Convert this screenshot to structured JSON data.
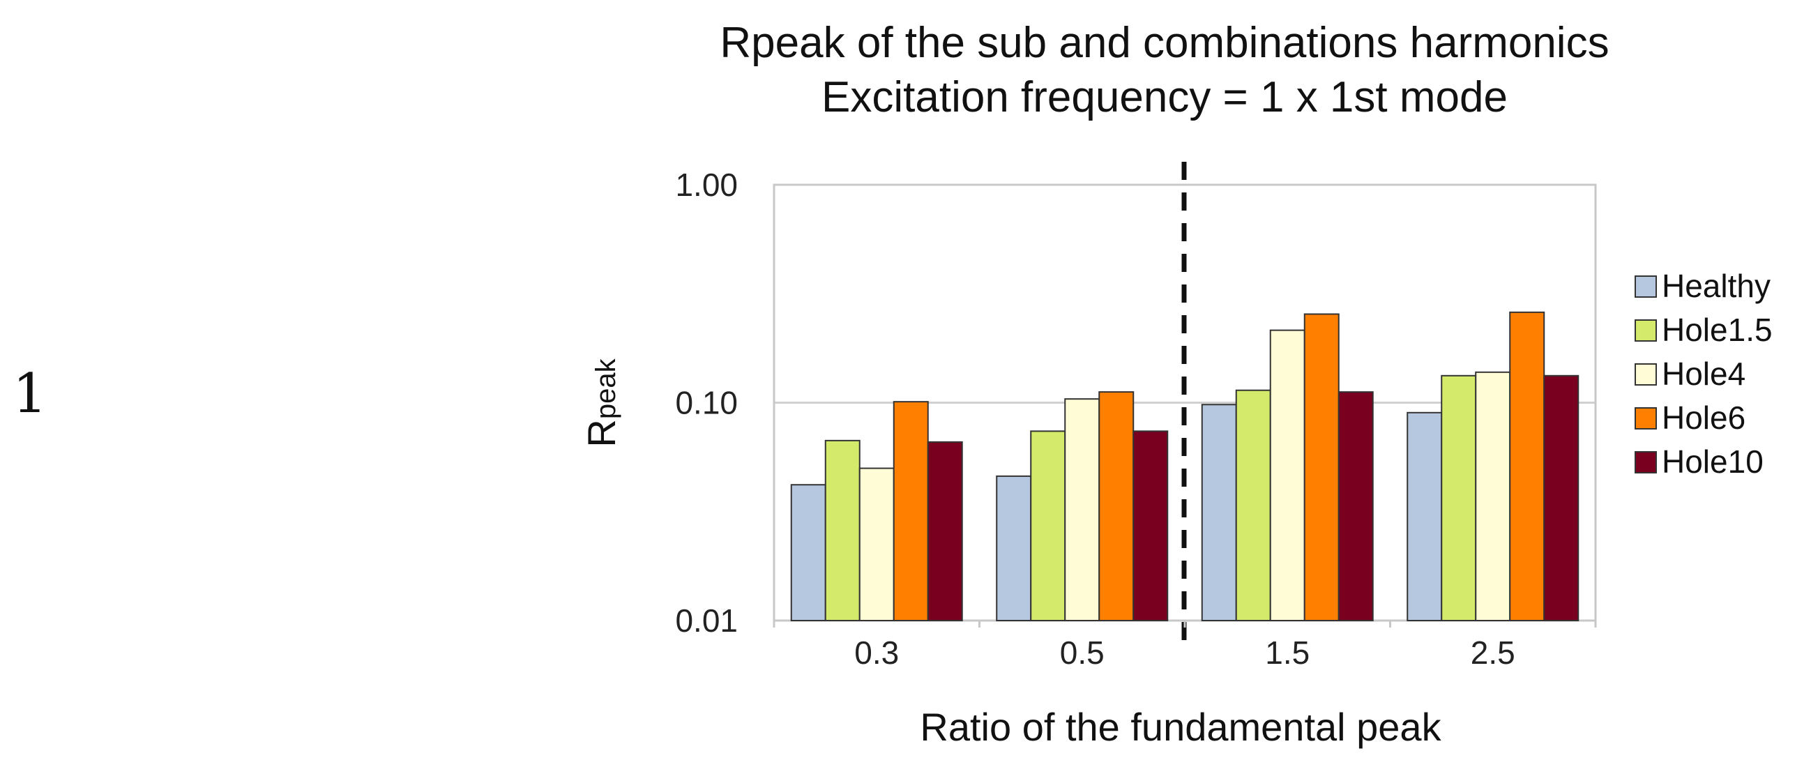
{
  "page_number": "1",
  "chart_data": {
    "type": "bar",
    "title_line1": "Rpeak of the sub and combinations harmonics",
    "title_line2": "Excitation frequency = 1 x 1st mode",
    "xlabel": "Ratio of the fundamental peak",
    "ylabel_main": "R",
    "ylabel_sub": "peak",
    "yscale": "log",
    "ylim": [
      0.01,
      1.0
    ],
    "yticks": [
      0.01,
      0.1,
      1.0
    ],
    "ytick_labels": [
      "0.01",
      "0.10",
      "1.00"
    ],
    "categories": [
      "0.3",
      "0.5",
      "1.5",
      "2.5"
    ],
    "divider_after_category": 1,
    "legend_position": "right",
    "series": [
      {
        "name": "Healthy",
        "color": "#b6c8e0",
        "values": [
          0.042,
          0.046,
          0.098,
          0.09
        ]
      },
      {
        "name": "Hole1.5",
        "color": "#d4ea6b",
        "values": [
          0.067,
          0.074,
          0.114,
          0.133
        ]
      },
      {
        "name": "Hole4",
        "color": "#fffcd6",
        "values": [
          0.05,
          0.104,
          0.215,
          0.138
        ]
      },
      {
        "name": "Hole6",
        "color": "#ff7f00",
        "values": [
          0.101,
          0.112,
          0.255,
          0.26
        ]
      },
      {
        "name": "Hole10",
        "color": "#7a0020",
        "values": [
          0.066,
          0.074,
          0.112,
          0.133
        ]
      }
    ]
  }
}
